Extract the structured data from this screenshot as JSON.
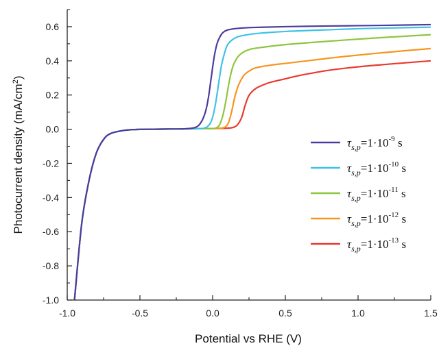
{
  "chart_data": {
    "type": "line",
    "title": "",
    "xlabel": "Potential vs RHE (V)",
    "ylabel": "Photocurrent density (mA/cm²)",
    "ylabel_parts": {
      "main": "Photocurrent density (mA/cm",
      "sup": "2",
      "end": ")"
    },
    "xlim": [
      -1.0,
      1.5
    ],
    "ylim": [
      -1.0,
      0.7
    ],
    "xticks": [
      -1.0,
      -0.5,
      0.0,
      0.5,
      1.0,
      1.5
    ],
    "xtick_labels": [
      "-1.0",
      "-0.5",
      "0.0",
      "0.5",
      "1.0",
      "1.5"
    ],
    "yticks": [
      -1.0,
      -0.8,
      -0.6,
      -0.4,
      -0.2,
      0.0,
      0.2,
      0.4,
      0.6
    ],
    "ytick_labels": [
      "-1.0",
      "-0.8",
      "-0.6",
      "-0.4",
      "-0.2",
      "0.0",
      "0.2",
      "0.4",
      "0.6"
    ],
    "grid": false,
    "legend_position": "right",
    "legend_prefix": "τ",
    "legend_sub": "s,p",
    "series": [
      {
        "name": "τs,p=1·10-9 s",
        "mantissa": "=1·10",
        "exp": "-9",
        "unit": " s",
        "color": "#4B3C9E",
        "x": [
          -0.95,
          -0.9,
          -0.85,
          -0.8,
          -0.75,
          -0.7,
          -0.6,
          -0.5,
          -0.4,
          -0.3,
          -0.2,
          -0.12,
          -0.08,
          -0.05,
          -0.03,
          -0.01,
          0.01,
          0.03,
          0.05,
          0.07,
          0.1,
          0.15,
          0.2,
          0.3,
          0.5,
          0.8,
          1.0,
          1.2,
          1.5
        ],
        "y": [
          -1.0,
          -0.55,
          -0.3,
          -0.14,
          -0.06,
          -0.025,
          -0.006,
          -0.001,
          0.0,
          0.001,
          0.002,
          0.01,
          0.04,
          0.1,
          0.18,
          0.3,
          0.42,
          0.5,
          0.54,
          0.565,
          0.58,
          0.588,
          0.592,
          0.596,
          0.6,
          0.604,
          0.606,
          0.608,
          0.612
        ]
      },
      {
        "name": "τs,p=1·10-10 s",
        "mantissa": "=1·10",
        "exp": "-10",
        "unit": " s",
        "color": "#3FC1E8",
        "x": [
          -0.95,
          -0.9,
          -0.85,
          -0.8,
          -0.75,
          -0.7,
          -0.6,
          -0.5,
          -0.4,
          -0.3,
          -0.2,
          -0.1,
          -0.05,
          -0.02,
          0.0,
          0.02,
          0.04,
          0.06,
          0.08,
          0.1,
          0.13,
          0.17,
          0.22,
          0.3,
          0.5,
          0.8,
          1.0,
          1.2,
          1.5
        ],
        "y": [
          -1.0,
          -0.55,
          -0.3,
          -0.14,
          -0.06,
          -0.025,
          -0.006,
          -0.001,
          0.0,
          0.001,
          0.002,
          0.003,
          0.008,
          0.03,
          0.07,
          0.15,
          0.26,
          0.37,
          0.44,
          0.49,
          0.52,
          0.54,
          0.55,
          0.56,
          0.572,
          0.582,
          0.588,
          0.592,
          0.597
        ]
      },
      {
        "name": "τs,p=1·10-11 s",
        "mantissa": "=1·10",
        "exp": "-11",
        "unit": " s",
        "color": "#8DC63F",
        "x": [
          -0.95,
          -0.9,
          -0.85,
          -0.8,
          -0.75,
          -0.7,
          -0.6,
          -0.5,
          -0.4,
          -0.3,
          -0.2,
          -0.1,
          0.0,
          0.03,
          0.05,
          0.07,
          0.09,
          0.11,
          0.13,
          0.15,
          0.18,
          0.22,
          0.27,
          0.35,
          0.5,
          0.8,
          1.0,
          1.2,
          1.5
        ],
        "y": [
          -1.0,
          -0.55,
          -0.3,
          -0.14,
          -0.06,
          -0.025,
          -0.006,
          -0.001,
          0.0,
          0.001,
          0.002,
          0.003,
          0.004,
          0.01,
          0.03,
          0.08,
          0.16,
          0.26,
          0.34,
          0.39,
          0.43,
          0.455,
          0.47,
          0.48,
          0.495,
          0.515,
          0.527,
          0.538,
          0.553
        ]
      },
      {
        "name": "τs,p=1·10-12 s",
        "mantissa": "=1·10",
        "exp": "-12",
        "unit": " s",
        "color": "#F7941D",
        "x": [
          -0.95,
          -0.9,
          -0.85,
          -0.8,
          -0.75,
          -0.7,
          -0.6,
          -0.5,
          -0.4,
          -0.3,
          -0.2,
          -0.1,
          0.0,
          0.06,
          0.09,
          0.11,
          0.13,
          0.15,
          0.17,
          0.19,
          0.22,
          0.26,
          0.3,
          0.4,
          0.5,
          0.7,
          0.9,
          1.2,
          1.5
        ],
        "y": [
          -1.0,
          -0.55,
          -0.3,
          -0.14,
          -0.06,
          -0.025,
          -0.006,
          -0.001,
          0.0,
          0.001,
          0.002,
          0.003,
          0.004,
          0.006,
          0.015,
          0.04,
          0.1,
          0.18,
          0.24,
          0.28,
          0.32,
          0.345,
          0.36,
          0.375,
          0.385,
          0.405,
          0.425,
          0.45,
          0.472
        ]
      },
      {
        "name": "τs,p=1·10-13 s",
        "mantissa": "=1·10",
        "exp": "-13",
        "unit": " s",
        "color": "#E83A2E",
        "x": [
          -0.95,
          -0.9,
          -0.85,
          -0.8,
          -0.75,
          -0.7,
          -0.6,
          -0.5,
          -0.4,
          -0.3,
          -0.2,
          -0.1,
          0.0,
          0.1,
          0.14,
          0.17,
          0.2,
          0.22,
          0.24,
          0.26,
          0.3,
          0.35,
          0.4,
          0.5,
          0.6,
          0.8,
          1.0,
          1.2,
          1.5
        ],
        "y": [
          -1.0,
          -0.55,
          -0.3,
          -0.14,
          -0.06,
          -0.025,
          -0.006,
          -0.001,
          0.0,
          0.001,
          0.002,
          0.003,
          0.004,
          0.006,
          0.01,
          0.025,
          0.07,
          0.13,
          0.18,
          0.21,
          0.24,
          0.26,
          0.275,
          0.295,
          0.315,
          0.345,
          0.365,
          0.38,
          0.4
        ]
      }
    ]
  }
}
